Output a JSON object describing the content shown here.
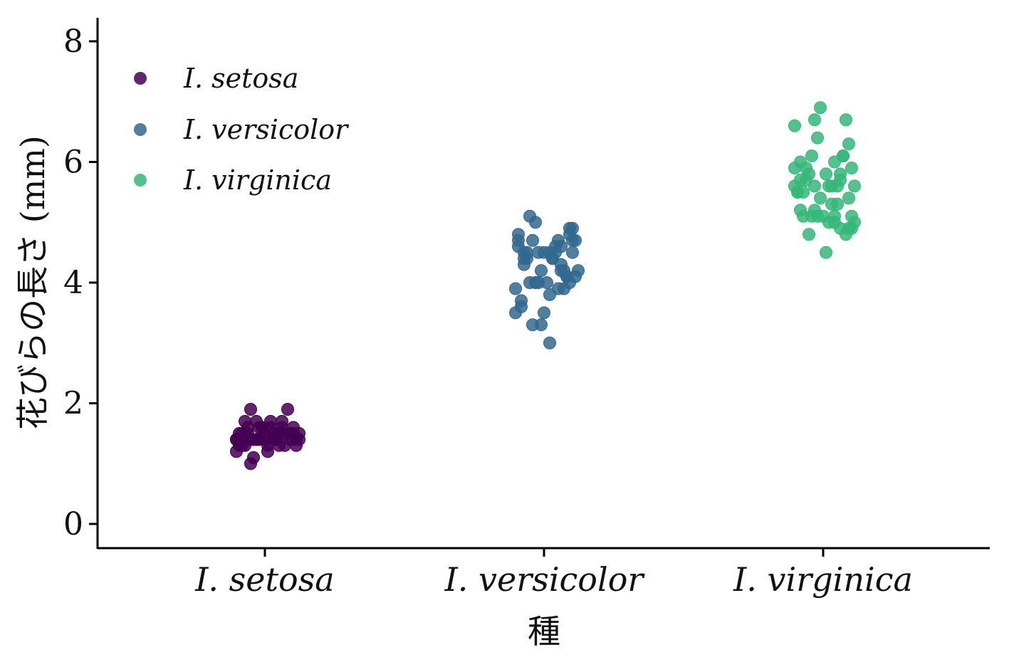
{
  "chart_data": {
    "type": "scatter",
    "subtype": "jitter-strip",
    "title": "",
    "xlabel": "種",
    "ylabel": "花びらの長さ (mm)",
    "categories": [
      "I. setosa",
      "I. versicolor",
      "I. virginica"
    ],
    "ylim": [
      -0.4,
      8.4
    ],
    "yticks": [
      0,
      2,
      4,
      6,
      8
    ],
    "grid": false,
    "legend_position": "top-left",
    "series": [
      {
        "name": "I. setosa",
        "color": "#440154",
        "points": [
          [
            -0.1,
            1.4
          ],
          [
            -0.08,
            1.3
          ],
          [
            0.04,
            1.4
          ],
          [
            0.1,
            1.5
          ],
          [
            -0.02,
            1.4
          ],
          [
            0.06,
            1.7
          ],
          [
            -0.05,
            1.4
          ],
          [
            0.12,
            1.5
          ],
          [
            -0.1,
            1.4
          ],
          [
            0.09,
            1.5
          ],
          [
            0.0,
            1.5
          ],
          [
            -0.06,
            1.6
          ],
          [
            0.03,
            1.4
          ],
          [
            -0.04,
            1.1
          ],
          [
            0.01,
            1.2
          ],
          [
            0.07,
            1.5
          ],
          [
            -0.09,
            1.3
          ],
          [
            0.11,
            1.4
          ],
          [
            -0.03,
            1.7
          ],
          [
            0.05,
            1.5
          ],
          [
            -0.07,
            1.7
          ],
          [
            0.1,
            1.5
          ],
          [
            -0.05,
            1.0
          ],
          [
            0.02,
            1.7
          ],
          [
            0.08,
            1.9
          ],
          [
            -0.01,
            1.6
          ],
          [
            0.06,
            1.6
          ],
          [
            -0.08,
            1.5
          ],
          [
            0.04,
            1.4
          ],
          [
            -0.02,
            1.6
          ],
          [
            0.1,
            1.6
          ],
          [
            -0.06,
            1.5
          ],
          [
            0.03,
            1.5
          ],
          [
            -0.04,
            1.4
          ],
          [
            0.09,
            1.5
          ],
          [
            -0.1,
            1.2
          ],
          [
            0.05,
            1.3
          ],
          [
            -0.03,
            1.4
          ],
          [
            0.07,
            1.3
          ],
          [
            -0.09,
            1.5
          ],
          [
            0.01,
            1.3
          ],
          [
            0.11,
            1.3
          ],
          [
            -0.07,
            1.3
          ],
          [
            0.02,
            1.6
          ],
          [
            -0.05,
            1.9
          ],
          [
            0.09,
            1.4
          ],
          [
            -0.01,
            1.6
          ],
          [
            0.12,
            1.4
          ],
          [
            0.05,
            1.5
          ],
          [
            0.0,
            1.4
          ]
        ]
      },
      {
        "name": "I. versicolor",
        "color": "#31688e",
        "points": [
          [
            -0.09,
            4.7
          ],
          [
            0.02,
            4.5
          ],
          [
            0.09,
            4.9
          ],
          [
            -0.03,
            4.0
          ],
          [
            0.06,
            4.6
          ],
          [
            -0.07,
            4.5
          ],
          [
            0.1,
            4.7
          ],
          [
            -0.01,
            3.3
          ],
          [
            0.04,
            4.6
          ],
          [
            -0.1,
            3.9
          ],
          [
            0.0,
            3.5
          ],
          [
            0.07,
            4.2
          ],
          [
            -0.05,
            4.0
          ],
          [
            0.11,
            4.7
          ],
          [
            -0.08,
            3.6
          ],
          [
            0.03,
            4.4
          ],
          [
            -0.02,
            4.5
          ],
          [
            0.08,
            4.1
          ],
          [
            -0.06,
            4.5
          ],
          [
            0.05,
            3.9
          ],
          [
            -0.09,
            4.8
          ],
          [
            0.01,
            4.0
          ],
          [
            0.1,
            4.9
          ],
          [
            -0.04,
            4.7
          ],
          [
            0.06,
            4.3
          ],
          [
            -0.07,
            4.4
          ],
          [
            0.09,
            4.8
          ],
          [
            -0.03,
            5.0
          ],
          [
            0.04,
            4.5
          ],
          [
            -0.1,
            3.5
          ],
          [
            0.02,
            3.8
          ],
          [
            -0.08,
            3.7
          ],
          [
            0.07,
            3.9
          ],
          [
            -0.05,
            5.1
          ],
          [
            0.1,
            4.5
          ],
          [
            0.0,
            4.5
          ],
          [
            0.05,
            4.7
          ],
          [
            -0.06,
            4.4
          ],
          [
            0.08,
            4.1
          ],
          [
            -0.02,
            4.0
          ],
          [
            0.03,
            4.4
          ],
          [
            -0.09,
            4.6
          ],
          [
            0.09,
            4.0
          ],
          [
            -0.04,
            3.3
          ],
          [
            0.06,
            4.2
          ],
          [
            -0.01,
            4.2
          ],
          [
            0.12,
            4.2
          ],
          [
            -0.07,
            4.3
          ],
          [
            0.02,
            3.0
          ],
          [
            0.11,
            4.1
          ]
        ]
      },
      {
        "name": "I. virginica",
        "color": "#35b779",
        "points": [
          [
            -0.08,
            6.0
          ],
          [
            0.04,
            5.1
          ],
          [
            0.1,
            5.9
          ],
          [
            -0.03,
            5.6
          ],
          [
            0.06,
            5.8
          ],
          [
            -0.1,
            6.6
          ],
          [
            0.01,
            4.5
          ],
          [
            0.09,
            6.3
          ],
          [
            -0.05,
            5.8
          ],
          [
            0.07,
            6.1
          ],
          [
            -0.02,
            5.1
          ],
          [
            0.03,
            5.3
          ],
          [
            -0.07,
            5.5
          ],
          [
            0.11,
            5.0
          ],
          [
            -0.04,
            5.1
          ],
          [
            0.05,
            5.3
          ],
          [
            -0.09,
            5.5
          ],
          [
            0.08,
            6.7
          ],
          [
            -0.01,
            6.9
          ],
          [
            0.02,
            5.0
          ],
          [
            -0.06,
            5.7
          ],
          [
            0.1,
            4.9
          ],
          [
            -0.03,
            6.7
          ],
          [
            0.06,
            4.9
          ],
          [
            -0.08,
            5.7
          ],
          [
            0.04,
            6.0
          ],
          [
            -0.05,
            4.8
          ],
          [
            0.09,
            4.9
          ],
          [
            -0.1,
            5.6
          ],
          [
            0.01,
            5.8
          ],
          [
            0.07,
            6.1
          ],
          [
            -0.02,
            6.4
          ],
          [
            0.03,
            5.6
          ],
          [
            -0.07,
            5.1
          ],
          [
            0.11,
            5.6
          ],
          [
            -0.04,
            6.1
          ],
          [
            0.05,
            5.6
          ],
          [
            -0.09,
            5.5
          ],
          [
            0.08,
            4.8
          ],
          [
            -0.01,
            5.4
          ],
          [
            0.02,
            5.6
          ],
          [
            0.1,
            5.1
          ],
          [
            -0.06,
            5.9
          ],
          [
            0.06,
            5.7
          ],
          [
            -0.03,
            5.2
          ],
          [
            0.04,
            5.0
          ],
          [
            -0.08,
            5.2
          ],
          [
            0.09,
            5.4
          ],
          [
            0.0,
            5.1
          ],
          [
            -0.1,
            5.9
          ]
        ]
      }
    ]
  }
}
